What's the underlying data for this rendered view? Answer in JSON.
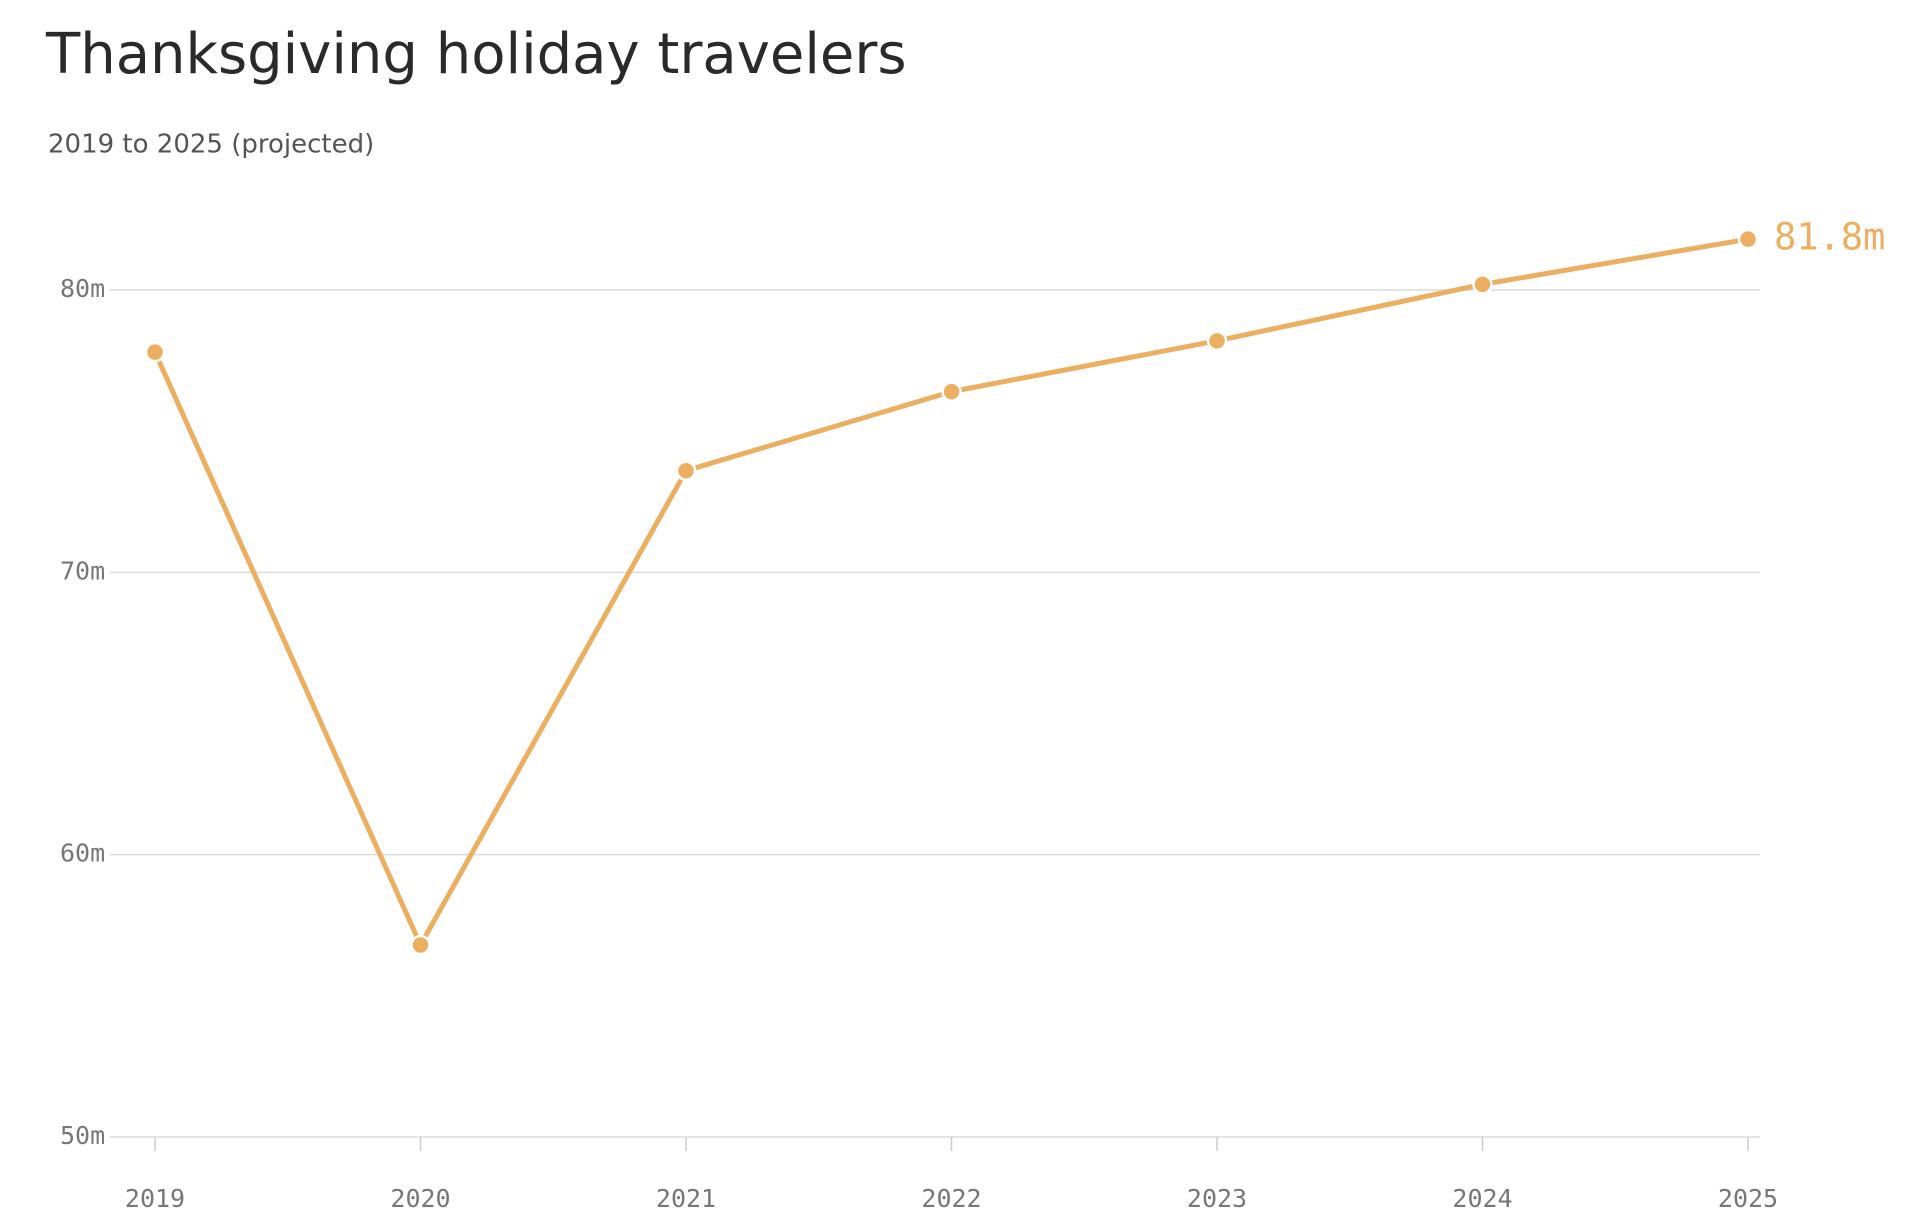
{
  "chart_data": {
    "type": "line",
    "title": "Thanksgiving holiday travelers",
    "subtitle": "2019 to 2025 (projected)",
    "categories": [
      "2019",
      "2020",
      "2021",
      "2022",
      "2023",
      "2024",
      "2025"
    ],
    "series": [
      {
        "color": "#ecaf62",
        "values": [
          77.8,
          56.8,
          73.6,
          76.4,
          78.2,
          80.2,
          81.8
        ],
        "value_labels": [
          null,
          null,
          null,
          null,
          null,
          null,
          "81.8m"
        ]
      }
    ],
    "ylim": [
      50,
      80
    ],
    "yticks": [
      {
        "value": 50,
        "label": "50m"
      },
      {
        "value": 60,
        "label": "60m"
      },
      {
        "value": 70,
        "label": "70m"
      },
      {
        "value": 80,
        "label": "80m"
      }
    ],
    "grid": true
  }
}
